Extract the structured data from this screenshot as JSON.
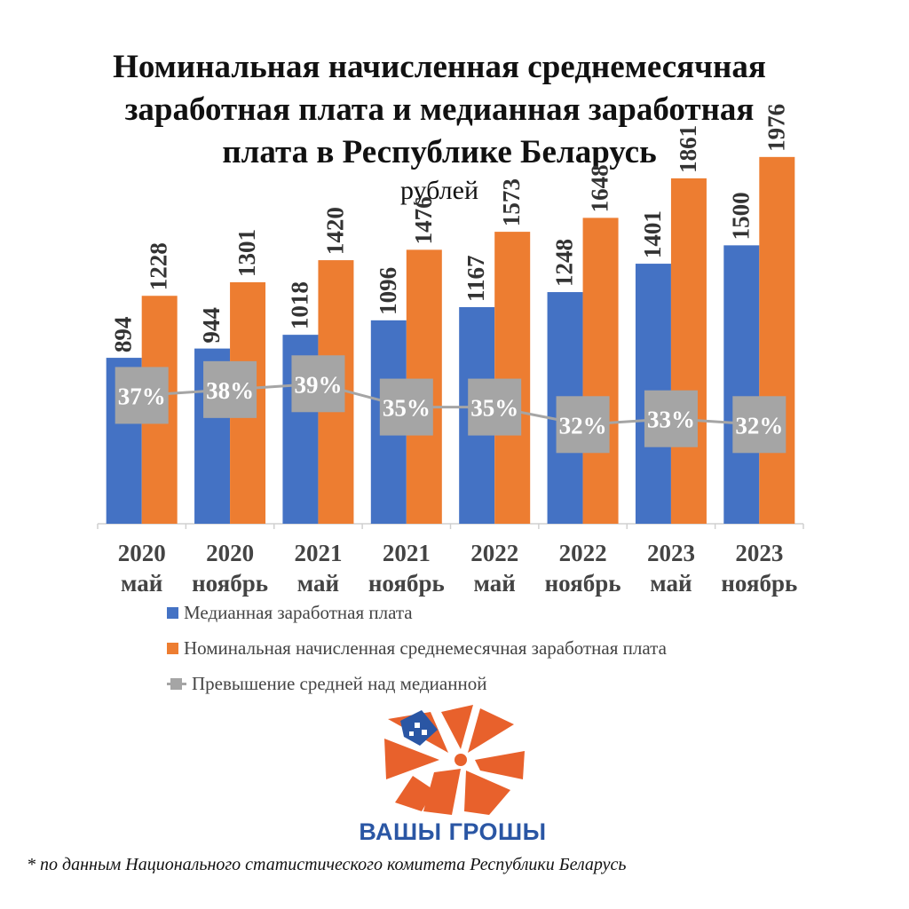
{
  "title": {
    "lines": [
      "Номинальная начисленная среднемесячная",
      "заработная плата и медианная заработная",
      "плата в Республике Беларусь"
    ]
  },
  "subtitle": "рублей",
  "chart_data": {
    "type": "bar",
    "categories": [
      [
        "2020",
        "май"
      ],
      [
        "2020",
        "ноябрь"
      ],
      [
        "2021",
        "май"
      ],
      [
        "2021",
        "ноябрь"
      ],
      [
        "2022",
        "май"
      ],
      [
        "2022",
        "ноябрь"
      ],
      [
        "2023",
        "май"
      ],
      [
        "2023",
        "ноябрь"
      ]
    ],
    "series": [
      {
        "name": "Медианная заработная плата",
        "type": "bar",
        "color": "#4472c4",
        "values": [
          894,
          944,
          1018,
          1096,
          1167,
          1248,
          1401,
          1500
        ]
      },
      {
        "name": "Номинальная начисленная среднемесячная заработная плата",
        "type": "bar",
        "color": "#ed7d31",
        "values": [
          1228,
          1301,
          1420,
          1476,
          1573,
          1648,
          1861,
          1976
        ]
      },
      {
        "name": "Превышение средней над медианной",
        "type": "line",
        "color": "#a5a5a5",
        "values": [
          37,
          38,
          39,
          35,
          35,
          32,
          33,
          32
        ],
        "labels": [
          "37%",
          "38%",
          "39%",
          "35%",
          "35%",
          "32%",
          "33%",
          "32%"
        ]
      }
    ],
    "ylim": [
      0,
      2200
    ],
    "line_ylim": [
      15,
      50
    ],
    "grid": false,
    "legend_position": "bottom"
  },
  "logo_text": "ВАШЫ ГРОШЫ",
  "footnote": "* по данным Национального статистического комитета Республики Беларусь",
  "colors": {
    "logo_orange": "#e8612c",
    "logo_blue": "#2a56a4"
  }
}
